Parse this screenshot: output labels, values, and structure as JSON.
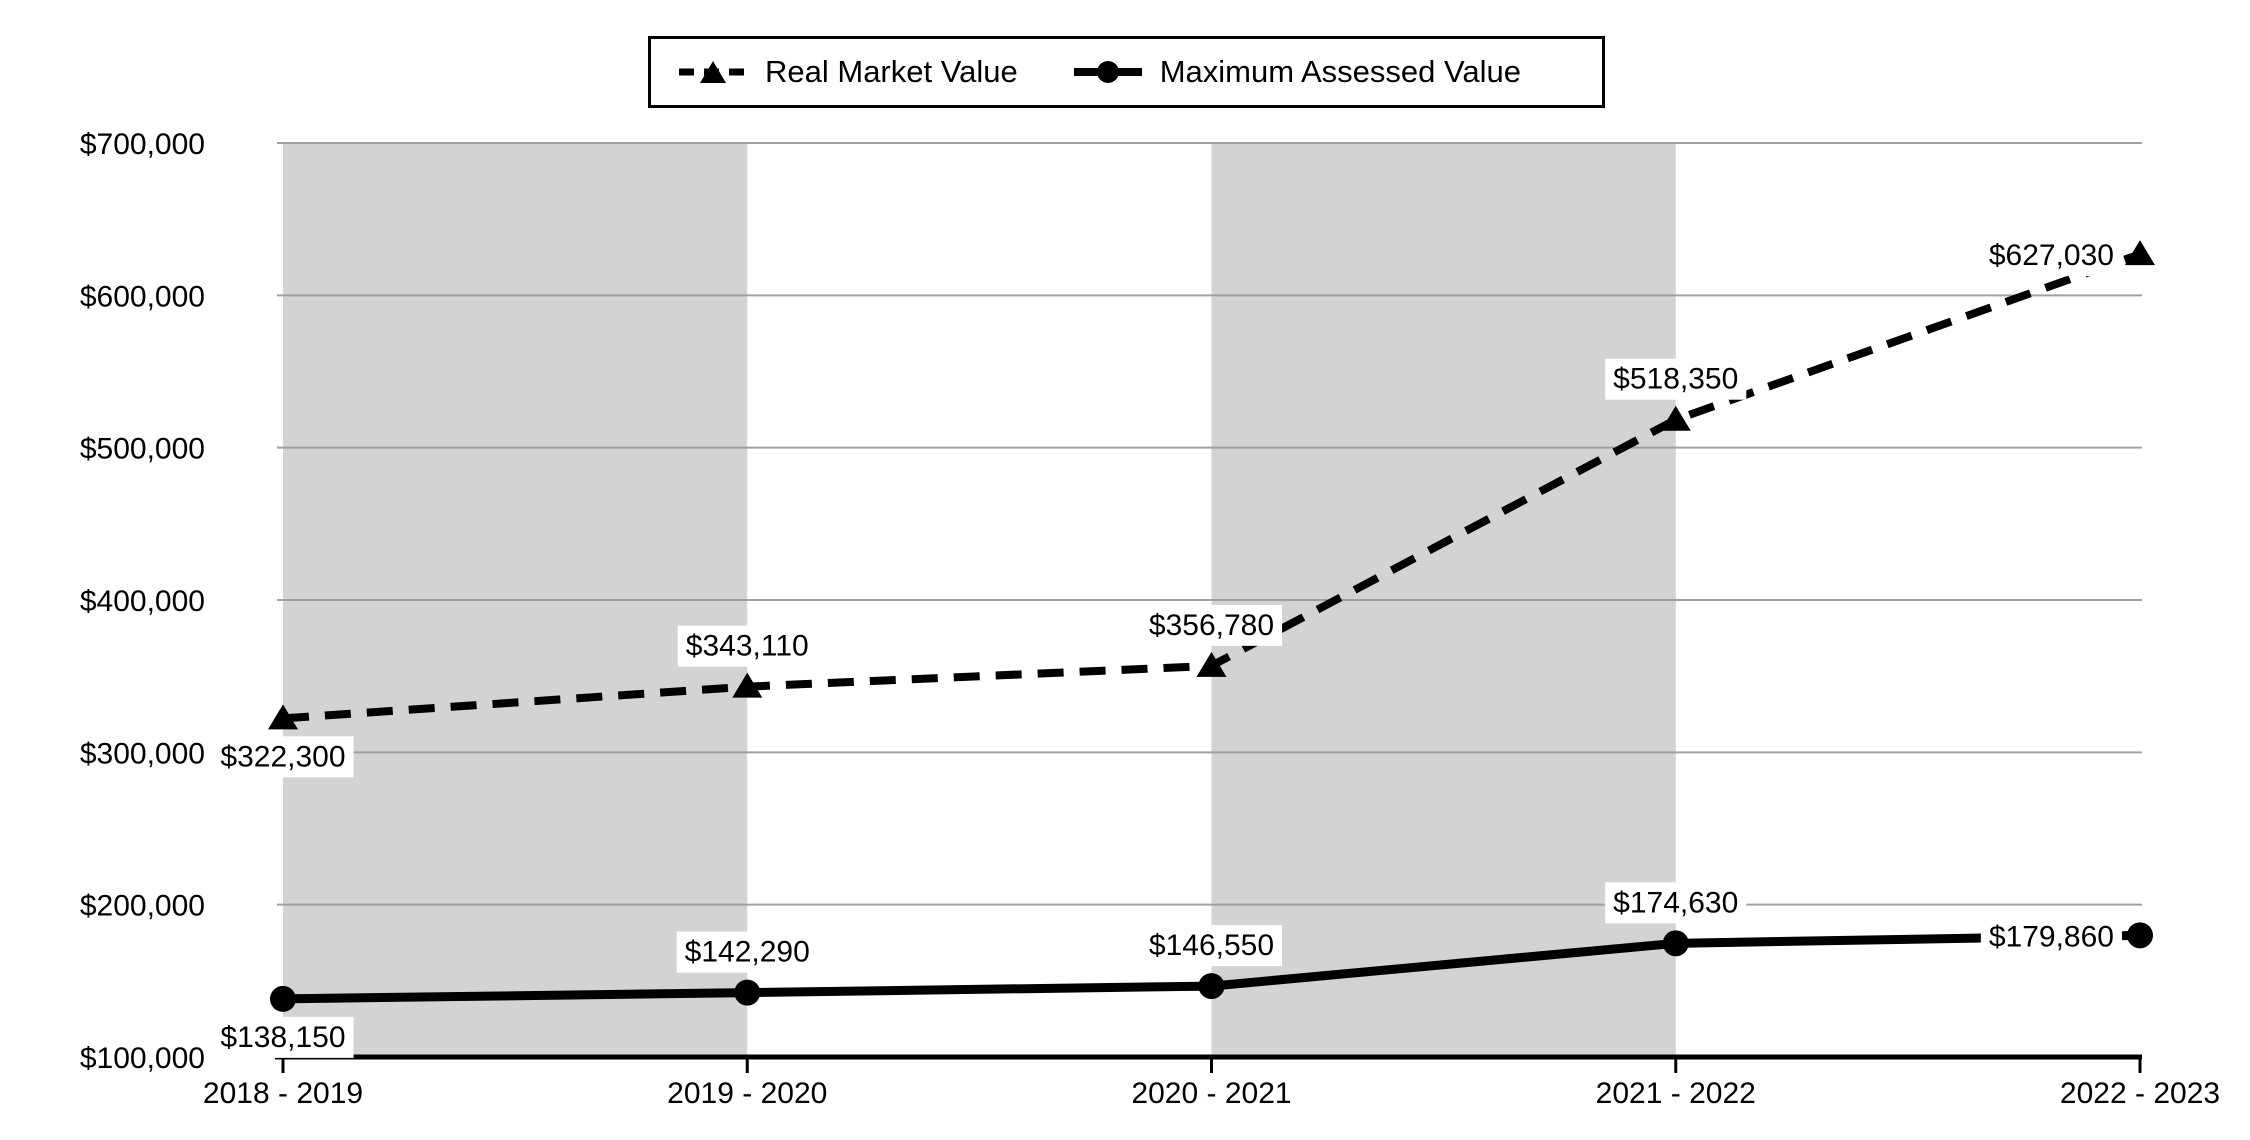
{
  "legend": {
    "items": [
      {
        "label": "Real Market Value",
        "marker": "triangle",
        "line_style": "dashed"
      },
      {
        "label": "Maximum Assessed Value",
        "marker": "circle",
        "line_style": "solid"
      }
    ]
  },
  "chart_data": {
    "type": "line",
    "title": "",
    "xlabel": "",
    "ylabel": "",
    "categories": [
      "2018 - 2019",
      "2019 - 2020",
      "2020 - 2021",
      "2021 - 2022",
      "2022 - 2023"
    ],
    "series": [
      {
        "name": "Real Market Value",
        "values": [
          322300,
          343110,
          356780,
          518350,
          627030
        ],
        "labels": [
          "$322,300",
          "$343,110",
          "$356,780",
          "$518,350",
          "$627,030"
        ],
        "label_pos": [
          "below",
          "above",
          "above",
          "above",
          "left"
        ],
        "marker": "triangle",
        "line_style": "dashed"
      },
      {
        "name": "Maximum Assessed Value",
        "values": [
          138150,
          142290,
          146550,
          174630,
          179860
        ],
        "labels": [
          "$138,150",
          "$142,290",
          "$146,550",
          "$174,630",
          "$179,860"
        ],
        "label_pos": [
          "below",
          "above",
          "above",
          "above",
          "left"
        ],
        "marker": "circle",
        "line_style": "solid"
      }
    ],
    "ylim": [
      100000,
      700000
    ],
    "ytick_step": 100000,
    "ytick_labels": [
      "$100,000",
      "$200,000",
      "$300,000",
      "$400,000",
      "$500,000",
      "$600,000",
      "$700,000"
    ],
    "grid": "horizontal",
    "legend_position": "top",
    "shaded_category_spans": [
      [
        0,
        1
      ],
      [
        2,
        3
      ]
    ],
    "colors": {
      "series": "#000000",
      "band": "#d3d3d3",
      "gridline": "#a0a0a0",
      "axis": "#000000",
      "background": "#ffffff",
      "label_background": "#ffffff"
    }
  }
}
